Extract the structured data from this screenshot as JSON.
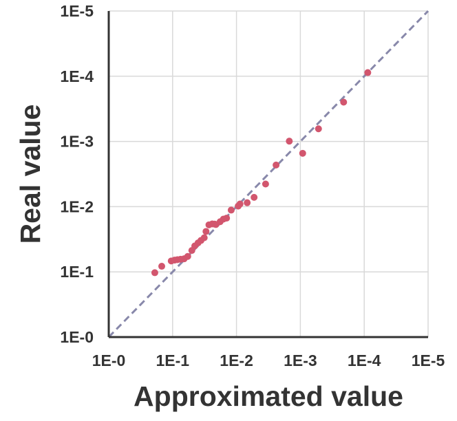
{
  "chart_data": {
    "type": "scatter",
    "title": "",
    "xlabel": "Approximated value",
    "ylabel": "Real value",
    "x_scale": "log",
    "y_scale": "log",
    "x_reversed": true,
    "y_reversed": true,
    "xlim": [
      1,
      1e-05
    ],
    "ylim": [
      1,
      1e-05
    ],
    "x_ticks": [
      "1E-0",
      "1E-1",
      "1E-2",
      "1E-3",
      "1E-4",
      "1E-5"
    ],
    "y_ticks": [
      "1E-0",
      "1E-1",
      "1E-2",
      "1E-3",
      "1E-4",
      "1E-5"
    ],
    "grid": true,
    "legend": "none",
    "colors": {
      "points": "#d2566e",
      "reference_line": "#8888aa",
      "grid": "#d9d9d9",
      "axis": "#333333"
    },
    "reference_line": {
      "style": "dashed",
      "from": [
        1,
        1
      ],
      "to": [
        1e-05,
        1e-05
      ]
    },
    "series": [
      {
        "x": [
          0.19,
          0.148,
          0.105,
          0.093,
          0.084,
          0.075,
          0.066,
          0.058,
          0.05,
          0.045,
          0.04,
          0.036,
          0.032,
          0.03,
          0.027,
          0.024,
          0.022,
          0.021,
          0.018,
          0.016,
          0.0143,
          0.0121,
          0.0094,
          0.0088,
          0.0068,
          0.0053,
          0.0035,
          0.0024,
          0.00149,
          0.00092,
          0.00052,
          0.00021,
          8.8e-05
        ],
        "y": [
          0.103,
          0.082,
          0.068,
          0.066,
          0.065,
          0.064,
          0.063,
          0.058,
          0.047,
          0.04,
          0.036,
          0.033,
          0.03,
          0.024,
          0.019,
          0.0184,
          0.0185,
          0.0188,
          0.017,
          0.0155,
          0.015,
          0.0113,
          0.0098,
          0.0091,
          0.0087,
          0.0072,
          0.0045,
          0.0023,
          0.00099,
          0.00152,
          0.00064,
          0.00025,
          8.8e-05
        ]
      }
    ]
  }
}
